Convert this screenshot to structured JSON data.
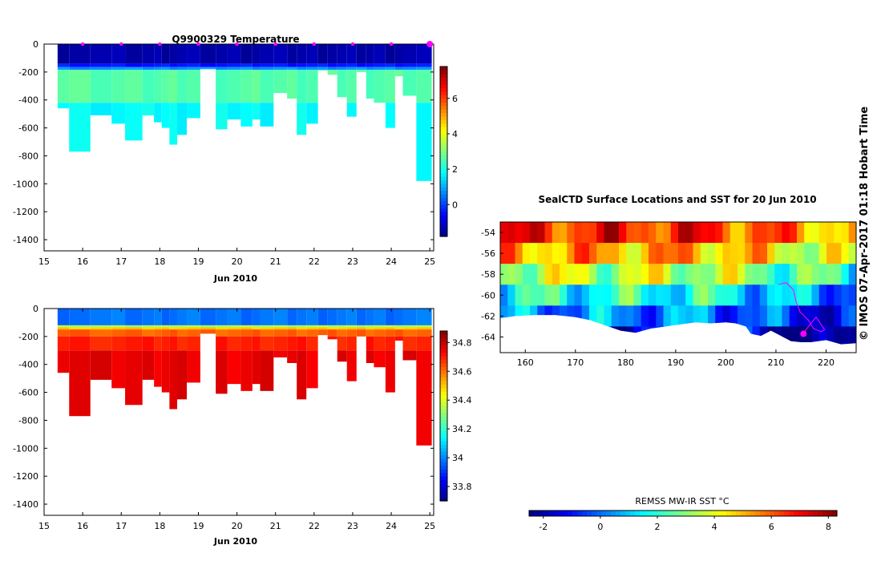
{
  "title": "Q9900329  Temperature",
  "credit": "© IMOS 07-Apr-2017 01:18 Hobart Time",
  "colors": {
    "marker": "#ff00ff",
    "land": "#ffffff"
  },
  "chart_data": [
    {
      "type": "heatmap",
      "name": "temperature-section",
      "title": "Q9900329  Temperature",
      "xlabel": "Jun 2010",
      "ylabel": "",
      "xlim": [
        15,
        25.1
      ],
      "ylim": [
        -1480,
        0
      ],
      "x_ticks": [
        "15",
        "16",
        "17",
        "18",
        "19",
        "20",
        "21",
        "22",
        "23",
        "24",
        "25"
      ],
      "y_ticks": [
        "0",
        "-200",
        "-400",
        "-600",
        "-800",
        "-1000",
        "-1200",
        "-1400"
      ],
      "colorbar": {
        "min": -1.8,
        "max": 7.8,
        "ticks": [
          "0",
          "2",
          "4",
          "6"
        ],
        "tick_values": [
          0,
          2,
          4,
          6
        ]
      },
      "profiles": [
        {
          "start": 15.35,
          "end": 15.65,
          "max_depth": 460
        },
        {
          "start": 15.65,
          "end": 16.2,
          "max_depth": 770
        },
        {
          "start": 16.2,
          "end": 16.75,
          "max_depth": 510
        },
        {
          "start": 16.75,
          "end": 17.1,
          "max_depth": 570
        },
        {
          "start": 17.1,
          "end": 17.55,
          "max_depth": 690
        },
        {
          "start": 17.55,
          "end": 17.85,
          "max_depth": 510
        },
        {
          "start": 17.85,
          "end": 18.05,
          "max_depth": 560
        },
        {
          "start": 18.05,
          "end": 18.25,
          "max_depth": 600
        },
        {
          "start": 18.25,
          "end": 18.45,
          "max_depth": 720
        },
        {
          "start": 18.45,
          "end": 18.7,
          "max_depth": 650
        },
        {
          "start": 18.7,
          "end": 19.05,
          "max_depth": 530
        },
        {
          "start": 19.05,
          "end": 19.45,
          "max_depth": 180
        },
        {
          "start": 19.45,
          "end": 19.75,
          "max_depth": 610
        },
        {
          "start": 19.75,
          "end": 20.1,
          "max_depth": 540
        },
        {
          "start": 20.1,
          "end": 20.4,
          "max_depth": 590
        },
        {
          "start": 20.4,
          "end": 20.6,
          "max_depth": 540
        },
        {
          "start": 20.6,
          "end": 20.95,
          "max_depth": 590
        },
        {
          "start": 20.95,
          "end": 21.3,
          "max_depth": 350
        },
        {
          "start": 21.3,
          "end": 21.55,
          "max_depth": 390
        },
        {
          "start": 21.55,
          "end": 21.8,
          "max_depth": 650
        },
        {
          "start": 21.8,
          "end": 22.1,
          "max_depth": 570
        },
        {
          "start": 22.1,
          "end": 22.35,
          "max_depth": 190
        },
        {
          "start": 22.35,
          "end": 22.6,
          "max_depth": 220
        },
        {
          "start": 22.6,
          "end": 22.85,
          "max_depth": 380
        },
        {
          "start": 22.85,
          "end": 23.1,
          "max_depth": 520
        },
        {
          "start": 23.1,
          "end": 23.35,
          "max_depth": 200
        },
        {
          "start": 23.35,
          "end": 23.55,
          "max_depth": 390
        },
        {
          "start": 23.55,
          "end": 23.85,
          "max_depth": 420
        },
        {
          "start": 23.85,
          "end": 24.1,
          "max_depth": 600
        },
        {
          "start": 24.1,
          "end": 24.3,
          "max_depth": 230
        },
        {
          "start": 24.3,
          "end": 24.65,
          "max_depth": 370
        },
        {
          "start": 24.65,
          "end": 25.05,
          "max_depth": 980
        }
      ],
      "layers": [
        {
          "top": 0,
          "bottom": 140,
          "value": -1.4
        },
        {
          "top": 140,
          "bottom": 165,
          "value": -0.4
        },
        {
          "top": 165,
          "bottom": 185,
          "value": 0.8
        },
        {
          "top": 185,
          "bottom": 420,
          "value": 2.6
        },
        {
          "top": 420,
          "bottom": 1000,
          "value": 1.8
        }
      ],
      "markers_x": [
        16,
        17,
        18,
        19,
        20,
        21,
        22,
        23,
        24,
        25
      ]
    },
    {
      "type": "heatmap",
      "name": "salinity-section",
      "title": "",
      "xlabel": "Jun 2010",
      "ylabel": "",
      "xlim": [
        15,
        25.1
      ],
      "ylim": [
        -1480,
        0
      ],
      "x_ticks": [
        "15",
        "16",
        "17",
        "18",
        "19",
        "20",
        "21",
        "22",
        "23",
        "24",
        "25"
      ],
      "y_ticks": [
        "0",
        "-200",
        "-400",
        "-600",
        "-800",
        "-1000",
        "-1200",
        "-1400"
      ],
      "colorbar": {
        "min": 33.7,
        "max": 34.88,
        "ticks": [
          "33.8",
          "34",
          "34.2",
          "34.4",
          "34.6",
          "34.8"
        ],
        "tick_values": [
          33.8,
          34.0,
          34.2,
          34.4,
          34.6,
          34.8
        ]
      },
      "layers": [
        {
          "top": 0,
          "bottom": 120,
          "value": 33.98
        },
        {
          "top": 120,
          "bottom": 135,
          "value": 34.35
        },
        {
          "top": 135,
          "bottom": 150,
          "value": 34.5
        },
        {
          "top": 150,
          "bottom": 200,
          "value": 34.62
        },
        {
          "top": 200,
          "bottom": 300,
          "value": 34.7
        },
        {
          "top": 300,
          "bottom": 1000,
          "value": 34.76
        }
      ]
    },
    {
      "type": "heatmap",
      "name": "sst-map",
      "title": "SealCTD Surface Locations and SST for 20 Jun 2010",
      "xlabel": "",
      "ylabel": "",
      "xlim": [
        155,
        226
      ],
      "ylim": [
        -65.5,
        -53
      ],
      "x_ticks": [
        "160",
        "170",
        "180",
        "190",
        "200",
        "210",
        "220"
      ],
      "y_ticks": [
        "-54",
        "-56",
        "-58",
        "-60",
        "-62",
        "-64"
      ],
      "colorbar": {
        "label": "REMSS MW-IR SST °C",
        "min": -2.5,
        "max": 8.3,
        "ticks": [
          "-2",
          "0",
          "2",
          "4",
          "6",
          "8"
        ],
        "tick_values": [
          -2,
          0,
          2,
          4,
          6,
          8
        ]
      },
      "bands": [
        {
          "lat_top": -53,
          "lat_bottom": -55,
          "value": 6.6
        },
        {
          "lat_top": -55,
          "lat_bottom": -57,
          "value": 5.2
        },
        {
          "lat_top": -57,
          "lat_bottom": -59,
          "value": 3.6
        },
        {
          "lat_top": -59,
          "lat_bottom": -61,
          "value": 1.8
        },
        {
          "lat_top": -61,
          "lat_bottom": -63,
          "value": 0.3
        },
        {
          "lat_top": -63,
          "lat_bottom": -65.5,
          "value": -1.2
        }
      ],
      "coast": [
        [
          155,
          -62.2
        ],
        [
          158,
          -62.0
        ],
        [
          162,
          -61.9
        ],
        [
          166,
          -61.9
        ],
        [
          170,
          -62.1
        ],
        [
          173,
          -62.4
        ],
        [
          176,
          -62.9
        ],
        [
          179,
          -63.4
        ],
        [
          182,
          -63.6
        ],
        [
          185,
          -63.2
        ],
        [
          188,
          -63.0
        ],
        [
          191,
          -62.8
        ],
        [
          194,
          -62.6
        ],
        [
          197,
          -62.7
        ],
        [
          200,
          -62.6
        ],
        [
          202,
          -62.7
        ],
        [
          204,
          -63.0
        ],
        [
          205,
          -63.7
        ],
        [
          207,
          -63.9
        ],
        [
          209,
          -63.4
        ],
        [
          211,
          -63.9
        ],
        [
          213,
          -64.4
        ],
        [
          215,
          -64.5
        ],
        [
          217,
          -64.5
        ],
        [
          220,
          -64.3
        ],
        [
          223,
          -64.7
        ],
        [
          226,
          -64.6
        ]
      ],
      "track": [
        [
          210.5,
          -59.0
        ],
        [
          212,
          -58.8
        ],
        [
          213.5,
          -59.5
        ],
        [
          214,
          -60.6
        ],
        [
          214.8,
          -61.6
        ],
        [
          216.5,
          -62.4
        ],
        [
          217.5,
          -63.2
        ],
        [
          219,
          -63.5
        ],
        [
          219.7,
          -63.3
        ],
        [
          218,
          -62.1
        ],
        [
          216,
          -63.3
        ],
        [
          215.5,
          -63.7
        ]
      ],
      "current_position": [
        215.5,
        -63.7
      ]
    }
  ]
}
